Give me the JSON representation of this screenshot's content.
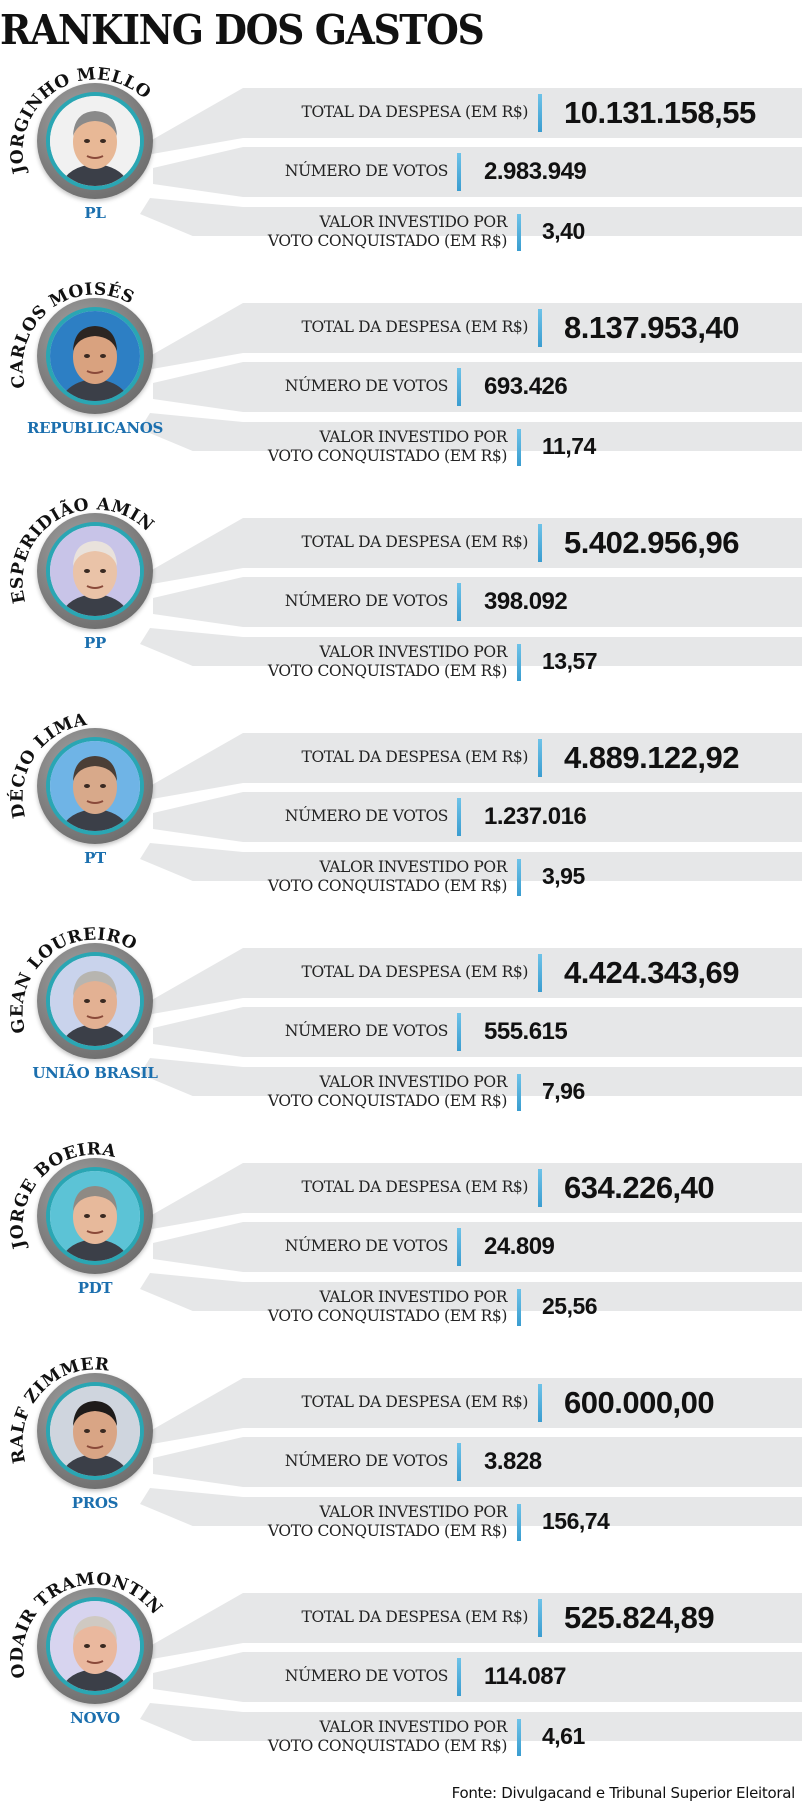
{
  "title": "RANKING DOS GASTOS",
  "labels": {
    "total": "TOTAL DA DESPESA (EM R$)",
    "votes": "NÚMERO DE VOTOS",
    "per_vote_line1": "VALOR INVESTIDO POR",
    "per_vote_line2": "VOTO CONQUISTADO (EM R$)"
  },
  "colors": {
    "band_gray": "#e6e7e8",
    "accent_blue": "#3a9dd0",
    "party_blue": "#1b6fae",
    "ring_teal": "#2aa6b3",
    "ring_gray": "#7d7d7d"
  },
  "candidates": [
    {
      "name": "JORGINHO MELLO",
      "party": "PL",
      "total": "10.131.158,55",
      "votes": "2.983.949",
      "per_vote": "3,40"
    },
    {
      "name": "CARLOS MOISÉS",
      "party": "REPUBLICANOS",
      "total": "8.137.953,40",
      "votes": "693.426",
      "per_vote": "11,74"
    },
    {
      "name": "ESPERIDIÃO AMIN",
      "party": "PP",
      "total": "5.402.956,96",
      "votes": "398.092",
      "per_vote": "13,57"
    },
    {
      "name": "DÉCIO LIMA",
      "party": "PT",
      "total": "4.889.122,92",
      "votes": "1.237.016",
      "per_vote": "3,95"
    },
    {
      "name": "GEAN LOUREIRO",
      "party": "UNIÃO BRASIL",
      "total": "4.424.343,69",
      "votes": "555.615",
      "per_vote": "7,96"
    },
    {
      "name": "JORGE BOEIRA",
      "party": "PDT",
      "total": "634.226,40",
      "votes": "24.809",
      "per_vote": "25,56"
    },
    {
      "name": "RALF ZIMMER",
      "party": "PROS",
      "total": "600.000,00",
      "votes": "3.828",
      "per_vote": "156,74"
    },
    {
      "name": "ODAIR TRAMONTIN",
      "party": "NOVO",
      "total": "525.824,89",
      "votes": "114.087",
      "per_vote": "4,61"
    }
  ],
  "source": "Fonte: Divulgacand e Tribunal Superior Eleitoral"
}
